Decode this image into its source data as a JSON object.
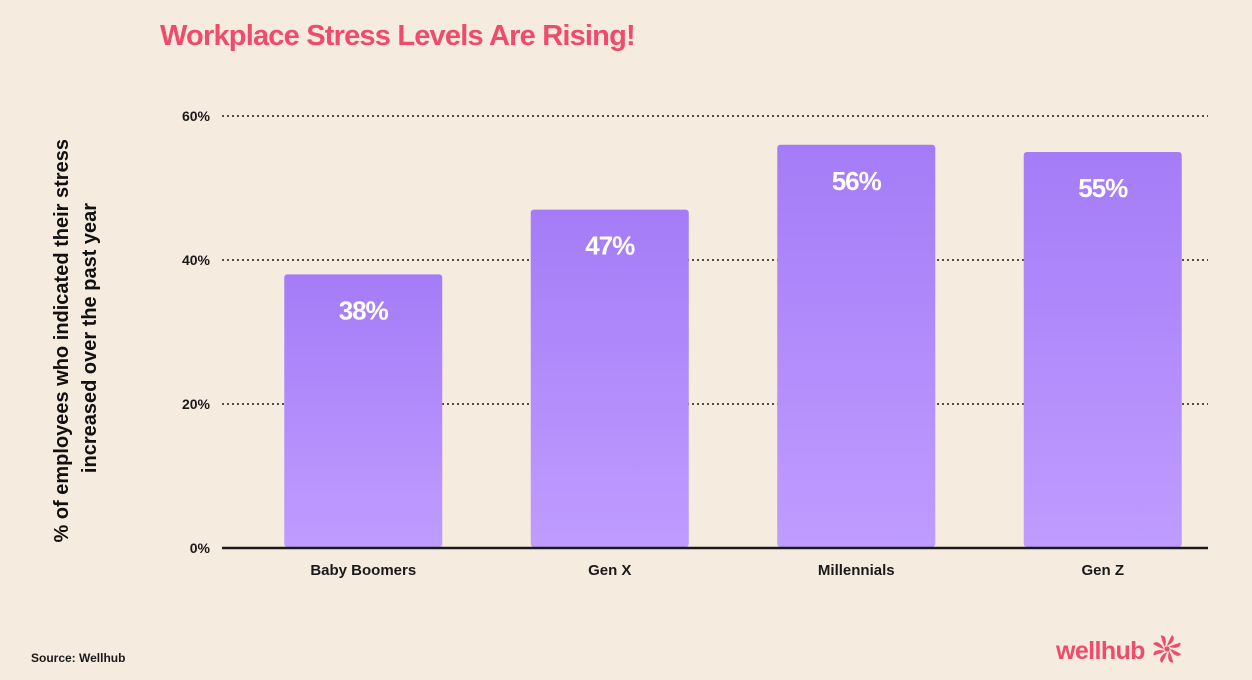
{
  "title": "Workplace Stress Levels Are Rising!",
  "source": "Source: Wellhub",
  "brand": {
    "name": "wellhub",
    "icon": "wellhub-swirl-icon"
  },
  "colors": {
    "background": "#f5ecdf",
    "title": "#ef4b6b",
    "bar_top": "#a47cf7",
    "bar_bottom": "#bf9cff",
    "axis": "#1a1a1a",
    "bar_label": "#ffffff",
    "brand": "#ef4b6b"
  },
  "chart_data": {
    "type": "bar",
    "categories": [
      "Baby Boomers",
      "Gen X",
      "Millennials",
      "Gen Z"
    ],
    "values": [
      38,
      47,
      56,
      55
    ],
    "value_labels": [
      "38%",
      "47%",
      "56%",
      "55%"
    ],
    "ylabel": "% of employees who indicated their stress increased over the past year",
    "ylabel_lines": [
      "% of employees who indicated their stress",
      "increased over the past year"
    ],
    "yticks": [
      0,
      20,
      40,
      60
    ],
    "ytick_labels": [
      "0%",
      "20%",
      "40%",
      "60%"
    ],
    "ylim": [
      0,
      60
    ],
    "grid": "dotted horizontal",
    "legend": "none"
  }
}
